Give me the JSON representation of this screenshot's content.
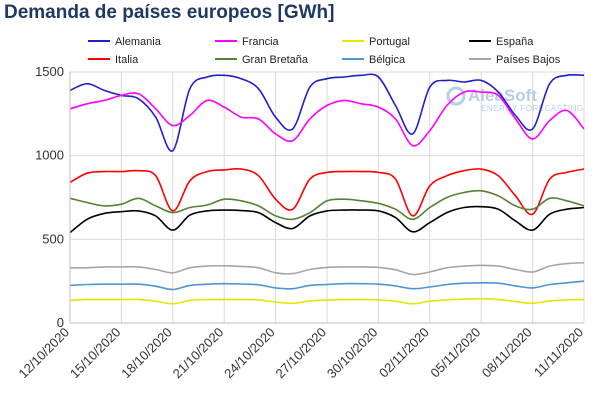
{
  "chart_data": {
    "type": "line",
    "title": "Demanda de países europeos [GWh]",
    "xlabel": "",
    "ylabel": "",
    "ylim": [
      0,
      1500
    ],
    "yticks": [
      0,
      500,
      1000,
      1500
    ],
    "grid": {
      "horizontal": true,
      "vertical": true
    },
    "legend_position": "top",
    "watermark": {
      "brand": "AleaSoft",
      "tagline": "ENERGY FORECASTING",
      "color": "#2e75b6"
    },
    "x": [
      "12/10/2020",
      "13/10/2020",
      "14/10/2020",
      "15/10/2020",
      "16/10/2020",
      "17/10/2020",
      "18/10/2020",
      "19/10/2020",
      "20/10/2020",
      "21/10/2020",
      "22/10/2020",
      "23/10/2020",
      "24/10/2020",
      "25/10/2020",
      "26/10/2020",
      "27/10/2020",
      "28/10/2020",
      "29/10/2020",
      "30/10/2020",
      "31/10/2020",
      "01/11/2020",
      "02/11/2020",
      "03/11/2020",
      "04/11/2020",
      "05/11/2020",
      "06/11/2020",
      "07/11/2020",
      "08/11/2020",
      "09/11/2020",
      "10/11/2020",
      "11/11/2020"
    ],
    "xtick_labels": [
      "12/10/2020",
      "15/10/2020",
      "18/10/2020",
      "21/10/2020",
      "24/10/2020",
      "27/10/2020",
      "30/10/2020",
      "02/11/2020",
      "05/11/2020",
      "08/11/2020",
      "11/11/2020"
    ],
    "series": [
      {
        "name": "Alemania",
        "color": "#1f1fcc",
        "values": [
          1390,
          1430,
          1390,
          1360,
          1340,
          1230,
          1030,
          1400,
          1470,
          1480,
          1460,
          1400,
          1230,
          1160,
          1410,
          1460,
          1470,
          1480,
          1470,
          1300,
          1130,
          1410,
          1450,
          1440,
          1450,
          1380,
          1240,
          1160,
          1430,
          1480,
          1480
        ]
      },
      {
        "name": "Francia",
        "color": "#ff00ff",
        "values": [
          1280,
          1310,
          1330,
          1360,
          1370,
          1280,
          1180,
          1240,
          1330,
          1290,
          1230,
          1220,
          1130,
          1090,
          1220,
          1300,
          1330,
          1310,
          1290,
          1220,
          1060,
          1150,
          1300,
          1380,
          1380,
          1360,
          1220,
          1100,
          1210,
          1270,
          1160
        ]
      },
      {
        "name": "Portugal",
        "color": "#e6e600",
        "values": [
          135,
          140,
          140,
          140,
          140,
          130,
          115,
          135,
          140,
          140,
          140,
          138,
          125,
          118,
          132,
          137,
          140,
          140,
          138,
          130,
          115,
          130,
          138,
          142,
          145,
          140,
          128,
          118,
          132,
          138,
          140
        ]
      },
      {
        "name": "España",
        "color": "#000000",
        "values": [
          540,
          620,
          655,
          665,
          670,
          640,
          555,
          645,
          670,
          675,
          672,
          660,
          600,
          565,
          640,
          670,
          675,
          675,
          670,
          630,
          545,
          600,
          660,
          690,
          695,
          680,
          610,
          555,
          650,
          680,
          690
        ]
      },
      {
        "name": "Italia",
        "color": "#ff0000",
        "values": [
          840,
          895,
          905,
          905,
          910,
          880,
          670,
          850,
          905,
          915,
          920,
          880,
          740,
          680,
          860,
          900,
          905,
          905,
          900,
          860,
          640,
          820,
          880,
          910,
          920,
          880,
          760,
          650,
          860,
          900,
          920
        ]
      },
      {
        "name": "Gran Bretaña",
        "color": "#548235",
        "values": [
          745,
          720,
          700,
          710,
          745,
          700,
          660,
          690,
          705,
          740,
          730,
          700,
          640,
          620,
          660,
          730,
          740,
          730,
          715,
          680,
          620,
          690,
          750,
          780,
          790,
          760,
          700,
          680,
          745,
          730,
          700
        ]
      },
      {
        "name": "Bélgica",
        "color": "#4f94d4",
        "values": [
          225,
          230,
          232,
          232,
          232,
          220,
          200,
          225,
          232,
          235,
          233,
          228,
          210,
          205,
          225,
          230,
          235,
          235,
          232,
          222,
          205,
          215,
          230,
          238,
          240,
          238,
          222,
          210,
          230,
          240,
          250
        ]
      },
      {
        "name": "Países Bajos",
        "color": "#a6a6a6",
        "values": [
          330,
          330,
          335,
          335,
          335,
          320,
          300,
          330,
          340,
          342,
          338,
          330,
          300,
          295,
          320,
          332,
          335,
          335,
          332,
          318,
          290,
          305,
          330,
          340,
          345,
          340,
          320,
          305,
          340,
          355,
          360
        ]
      }
    ]
  }
}
